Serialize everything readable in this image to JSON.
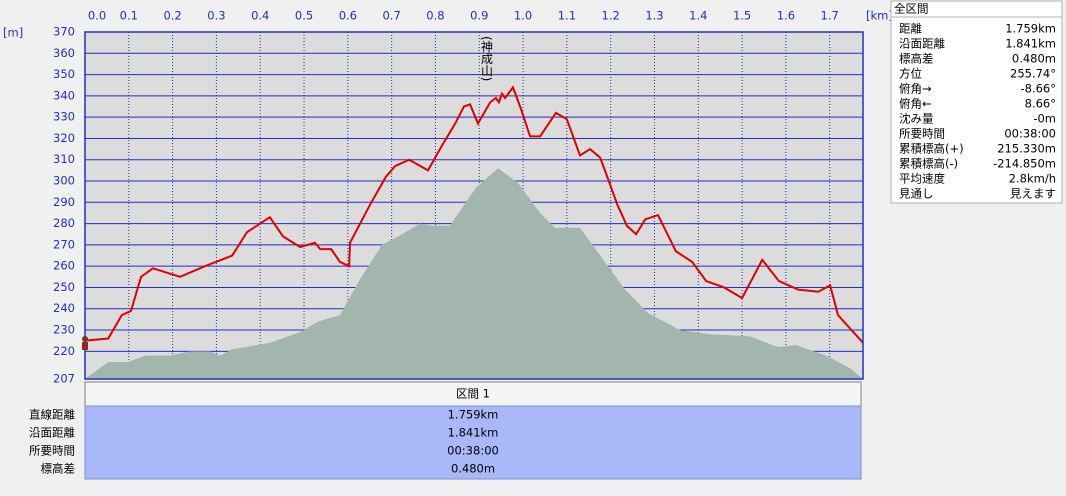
{
  "chart_data": {
    "type": "line",
    "xlim": [
      0,
      1.776
    ],
    "ylim": [
      207,
      370
    ],
    "xticks": [
      {
        "value": 0,
        "label": "0.0"
      },
      0.1,
      0.2,
      0.3,
      0.4,
      0.5,
      0.6,
      0.7,
      0.8,
      0.9,
      {
        "value": 1,
        "label": "1.0"
      },
      1.1,
      1.2,
      1.3,
      1.4,
      1.5,
      1.6,
      1.7
    ],
    "yticks": [
      207,
      220,
      230,
      240,
      250,
      260,
      270,
      280,
      290,
      300,
      310,
      320,
      330,
      340,
      350,
      360,
      370
    ],
    "x_unit": "[km]",
    "y_unit": "[m]",
    "grid": true,
    "annotation": "(神成山)",
    "series": [
      {
        "type": "area",
        "color": "#a2b6ae",
        "x": [
          0,
          0.053,
          0.098,
          0.137,
          0.194,
          0.24,
          0.285,
          0.308,
          0.336,
          0.422,
          0.491,
          0.532,
          0.582,
          0.628,
          0.678,
          0.715,
          0.765,
          0.792,
          0.833,
          0.893,
          0.943,
          0.989,
          1.039,
          1.073,
          1.13,
          1.176,
          1.233,
          1.285,
          1.358,
          1.427,
          1.518,
          1.582,
          1.623,
          1.692,
          1.747,
          1.776
        ],
        "values": [
          207,
          215,
          215,
          218,
          218,
          220,
          220,
          218,
          221,
          224,
          229,
          234,
          237,
          254,
          270,
          274,
          280,
          279,
          279,
          297,
          306,
          299,
          285,
          278,
          278,
          265,
          249,
          238,
          230,
          228,
          227,
          222,
          223,
          218,
          212,
          207
        ]
      },
      {
        "type": "line",
        "color": "#e00000",
        "x": [
          0,
          0.053,
          0.084,
          0.105,
          0.128,
          0.155,
          0.217,
          0.274,
          0.336,
          0.37,
          0.422,
          0.452,
          0.491,
          0.525,
          0.537,
          0.562,
          0.582,
          0.603,
          0.605,
          0.651,
          0.687,
          0.708,
          0.74,
          0.783,
          0.813,
          0.845,
          0.865,
          0.879,
          0.897,
          0.925,
          0.938,
          0.945,
          0.952,
          0.959,
          0.977,
          0.995,
          1.016,
          1.039,
          1.075,
          1.1,
          1.13,
          1.153,
          1.176,
          1.194,
          1.215,
          1.237,
          1.258,
          1.279,
          1.308,
          1.349,
          1.386,
          1.418,
          1.459,
          1.5,
          1.546,
          1.584,
          1.628,
          1.674,
          1.701,
          1.719,
          1.776
        ],
        "values": [
          225,
          226,
          237,
          239,
          255,
          259,
          255,
          260,
          265,
          276,
          283,
          274,
          269,
          271,
          268,
          268,
          262,
          260,
          271,
          289,
          302,
          307,
          310,
          305,
          316,
          327,
          335,
          336,
          327,
          337,
          339,
          337,
          341,
          339,
          344,
          334,
          321,
          321,
          332,
          329,
          312,
          315,
          311,
          301,
          289,
          279,
          275,
          282,
          284,
          267,
          262,
          253,
          250,
          245,
          263,
          253,
          249,
          248,
          251,
          237,
          224
        ]
      }
    ]
  },
  "summary_panel": {
    "title": "全区間",
    "rows": [
      [
        "距離",
        "1.759km"
      ],
      [
        "沿面距離",
        "1.841km"
      ],
      [
        "標高差",
        "0.480m"
      ],
      [
        "方位",
        "255.74°"
      ],
      [
        "俯角→",
        "-8.66°"
      ],
      [
        "俯角←",
        "8.66°"
      ],
      [
        "沈み量",
        "-0m"
      ],
      [
        "所要時間",
        "00:38:00"
      ],
      [
        "累積標高(+)",
        "215.330m"
      ],
      [
        "累積標高(-)",
        "-214.850m"
      ],
      [
        "平均速度",
        "2.8km/h"
      ],
      [
        "見通し",
        "見えます"
      ]
    ]
  },
  "section_table": {
    "title": "区間 1",
    "rows": [
      [
        "直線距離",
        "1.759km"
      ],
      [
        "沿面距離",
        "1.841km"
      ],
      [
        "所要時間",
        "00:38:00"
      ],
      [
        "標高差",
        "0.480m"
      ]
    ]
  }
}
